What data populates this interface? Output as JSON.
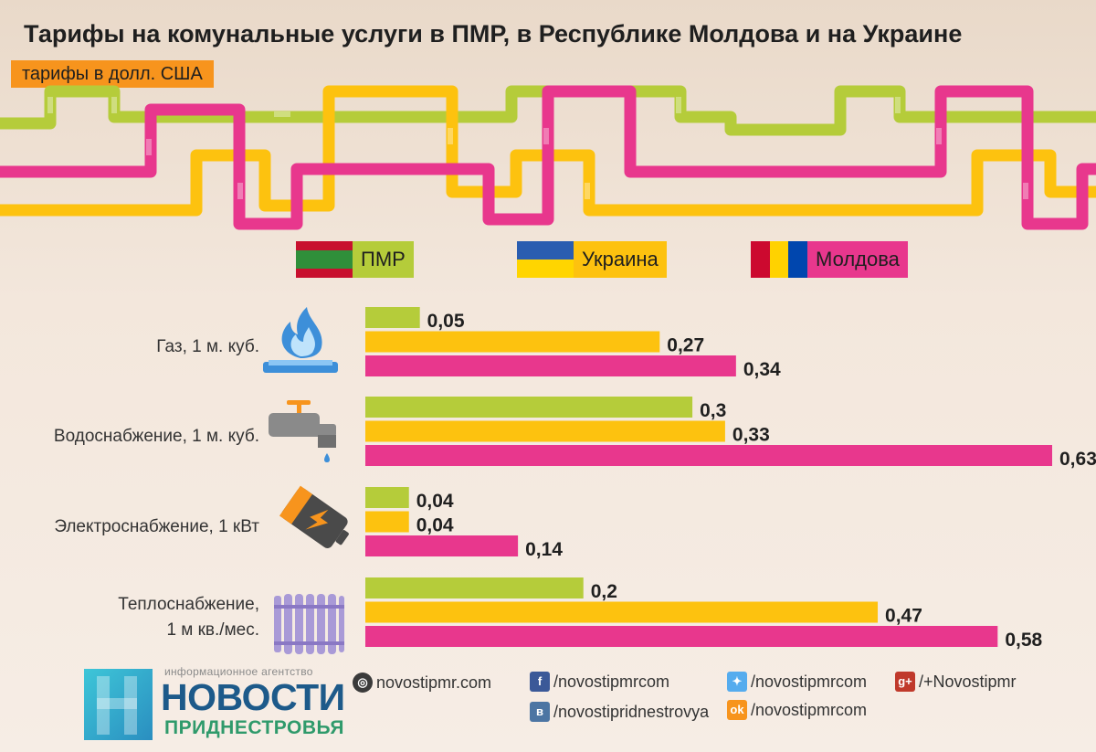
{
  "title": "Тарифы на комунальные услуги в ПМР, в Республике Молдова и на Украине",
  "subtitle": "тарифы в долл. США",
  "colors": {
    "pmr": "#b5cc3a",
    "ukraine": "#fdc20f",
    "moldova": "#e8378d"
  },
  "legend": [
    {
      "label": "ПМР",
      "bg": "#b5cc3a",
      "flag": [
        "#c8102e",
        "#2f8f3a",
        "#c8102e"
      ],
      "flag_dir": "h",
      "icon": "transnistria-flag-icon"
    },
    {
      "label": "Украина",
      "bg": "#fdc20f",
      "flag": [
        "#2a5db0",
        "#ffd500"
      ],
      "flag_dir": "h",
      "icon": "ukraine-flag-icon"
    },
    {
      "label": "Молдова",
      "bg": "#e8378d",
      "flag": [
        "#cc092f",
        "#ffd200",
        "#0046ae"
      ],
      "flag_dir": "v",
      "icon": "moldova-flag-icon"
    }
  ],
  "chart_data": {
    "type": "bar",
    "orientation": "horizontal",
    "unit": "долл. США",
    "categories": [
      "Газ, 1 м. куб.",
      "Водоснабжение, 1 м. куб.",
      "Электроснабжение, 1 кВт",
      "Теплоснабжение, 1 м кв./мес."
    ],
    "category_icons": [
      "gas-flame-icon",
      "water-tap-icon",
      "battery-icon",
      "radiator-icon"
    ],
    "series": [
      {
        "name": "ПМР",
        "values": [
          0.05,
          0.3,
          0.04,
          0.2
        ],
        "labels": [
          "0,05",
          "0,3",
          "0,04",
          "0,2"
        ]
      },
      {
        "name": "Украина",
        "values": [
          0.27,
          0.33,
          0.04,
          0.47
        ],
        "labels": [
          "0,27",
          "0,33",
          "0,04",
          "0,47"
        ]
      },
      {
        "name": "Молдова",
        "values": [
          0.34,
          0.63,
          0.14,
          0.58
        ],
        "labels": [
          "0,34",
          "0,63",
          "0,14",
          "0,58"
        ]
      }
    ],
    "xlim": [
      0,
      0.63
    ],
    "grid": false
  },
  "footer": {
    "agency_small": "информационное агентство",
    "brand": "НОВОСТИ",
    "brand_sub": "ПРИДНЕСТРОВЬЯ",
    "links": [
      {
        "text": "novostipmr.com",
        "icon": "globe-icon"
      },
      {
        "text": "/novostipmrcom",
        "icon": "facebook-icon"
      },
      {
        "text": "/novostipridnestrovya",
        "icon": "vk-icon"
      },
      {
        "text": "/novostipmrcom",
        "icon": "twitter-icon"
      },
      {
        "text": "/novostipmrcom",
        "icon": "odnoklassniki-icon"
      },
      {
        "text": "/+Novostipmr",
        "icon": "google-plus-icon"
      }
    ]
  }
}
